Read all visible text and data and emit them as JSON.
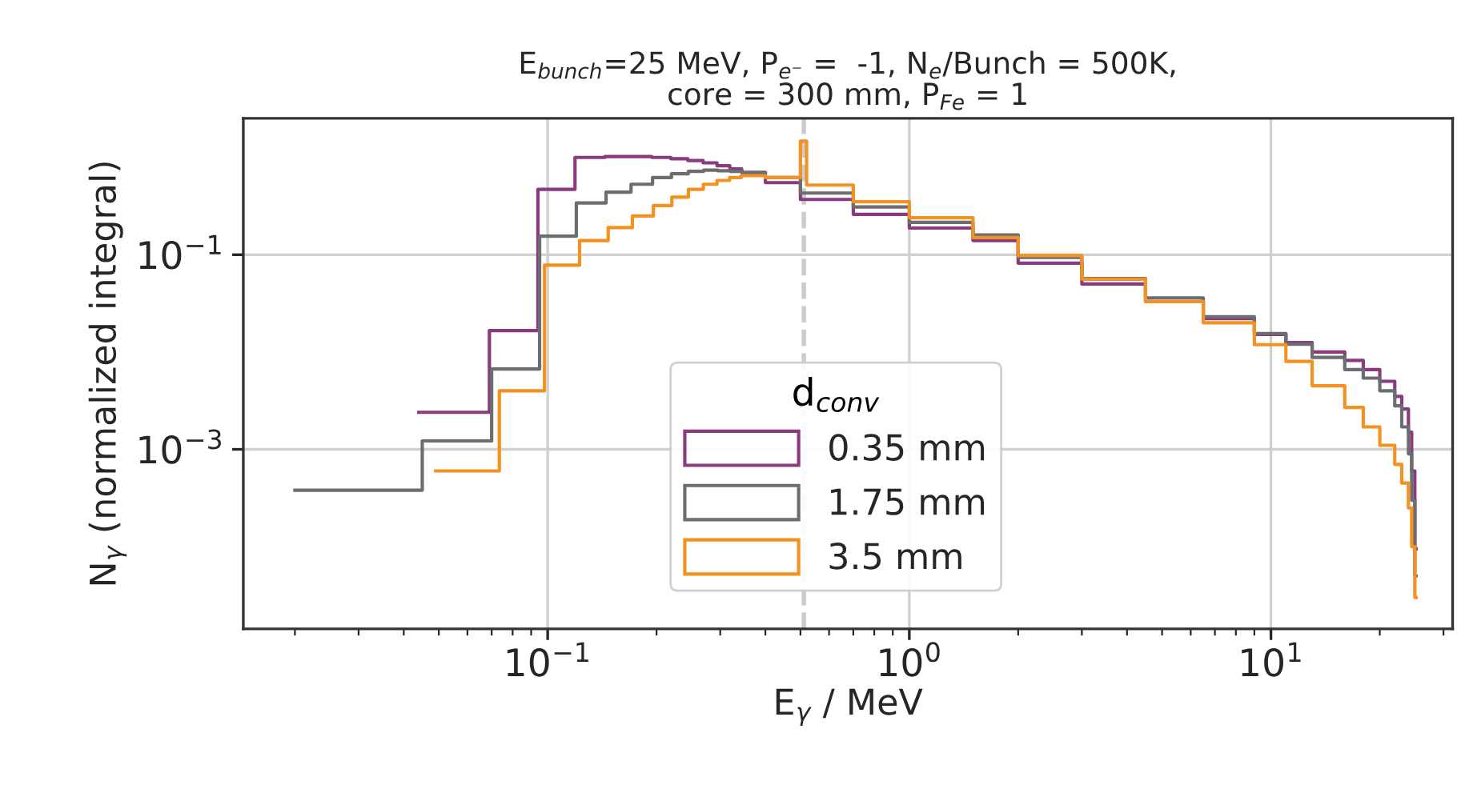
{
  "chart_data": {
    "type": "step",
    "title": "E$_{bunch}$=25 MeV, P$_{e⁻}$ =  -1, N$_{e}$/Bunch = 500K,\ncore = 300 mm, P$_{Fe}$ = 1",
    "xlabel": "E$_{γ}$ / MeV",
    "ylabel": "N$_{γ}$ (normalized integral)",
    "legend_title": "d$_{conv}$",
    "log": "xy",
    "xlim": [
      0.0144,
      31.8
    ],
    "ylim": [
      1.43e-05,
      2.52
    ],
    "xticks": [
      {
        "value": 0.1,
        "label": "10$^{−1}$"
      },
      {
        "value": 1,
        "label": "10$^{0}$"
      },
      {
        "value": 10,
        "label": "10$^{1}$"
      }
    ],
    "yticks": [
      {
        "value": 0.001,
        "label": "10$^{−3}$"
      },
      {
        "value": 0.1,
        "label": "10$^{−1}$"
      }
    ],
    "grid": true,
    "legend": "bottom",
    "ref_lines": [
      {
        "axis": "x",
        "value": 0.511,
        "color": "#cccccc",
        "line_style": "dashed"
      }
    ],
    "series": [
      {
        "name": "0.35 mm",
        "color": "#8b3a80",
        "x": [
          0.044,
          0.069,
          0.094,
          0.119,
          0.144,
          0.169,
          0.194,
          0.219,
          0.244,
          0.269,
          0.294,
          0.319,
          0.344,
          0.4,
          0.5,
          0.7,
          1.0,
          1.5,
          2.0,
          3.0,
          4.5,
          6.5,
          9,
          11,
          13,
          16,
          18,
          20,
          22,
          23,
          24,
          24.5,
          25,
          25.2
        ],
        "values": [
          0.0024,
          0.0166,
          0.47,
          1.0,
          1.02,
          1.02,
          1.0,
          0.97,
          0.93,
          0.88,
          0.82,
          0.76,
          0.7,
          0.55,
          0.37,
          0.26,
          0.188,
          0.14,
          0.082,
          0.05,
          0.033,
          0.022,
          0.0152,
          0.0125,
          0.01,
          0.0082,
          0.0066,
          0.005,
          0.0035,
          0.0026,
          0.0015,
          0.0006,
          9.5e-05,
          9.5e-05
        ]
      },
      {
        "name": "1.75 mm",
        "color": "#6b6e70",
        "x": [
          0.02,
          0.045,
          0.07,
          0.095,
          0.12,
          0.145,
          0.17,
          0.195,
          0.22,
          0.245,
          0.27,
          0.295,
          0.32,
          0.345,
          0.4,
          0.5,
          0.7,
          1.0,
          1.5,
          2.0,
          3.0,
          4.5,
          6.5,
          9,
          11,
          13,
          16,
          18,
          20,
          22,
          23,
          24,
          24.5,
          25,
          25.2
        ],
        "values": [
          0.00038,
          0.00122,
          0.0067,
          0.155,
          0.34,
          0.44,
          0.53,
          0.62,
          0.68,
          0.72,
          0.74,
          0.73,
          0.72,
          0.7,
          0.62,
          0.43,
          0.31,
          0.215,
          0.16,
          0.094,
          0.057,
          0.036,
          0.023,
          0.0155,
          0.012,
          0.0088,
          0.0066,
          0.0054,
          0.004,
          0.0028,
          0.0017,
          0.0009,
          0.0003,
          5e-05,
          5e-05
        ]
      },
      {
        "name": "3.5 mm",
        "color": "#f39222",
        "x": [
          0.049,
          0.0735,
          0.098,
          0.1225,
          0.147,
          0.1715,
          0.196,
          0.2205,
          0.245,
          0.2695,
          0.294,
          0.3185,
          0.343,
          0.4,
          0.5,
          0.52,
          0.7,
          1.0,
          1.5,
          2.0,
          3.0,
          4.5,
          6.5,
          9,
          11,
          13,
          16,
          18,
          20,
          22,
          23,
          24,
          24.5,
          25,
          25.2
        ],
        "values": [
          0.0006,
          0.004,
          0.078,
          0.14,
          0.19,
          0.25,
          0.32,
          0.39,
          0.47,
          0.53,
          0.58,
          0.62,
          0.65,
          0.62,
          1.47,
          0.52,
          0.35,
          0.24,
          0.15,
          0.098,
          0.056,
          0.033,
          0.02,
          0.0119,
          0.008,
          0.0045,
          0.0027,
          0.0017,
          0.0011,
          0.0007,
          0.00045,
          0.00025,
          0.0001,
          3e-05,
          3e-05
        ]
      }
    ]
  }
}
